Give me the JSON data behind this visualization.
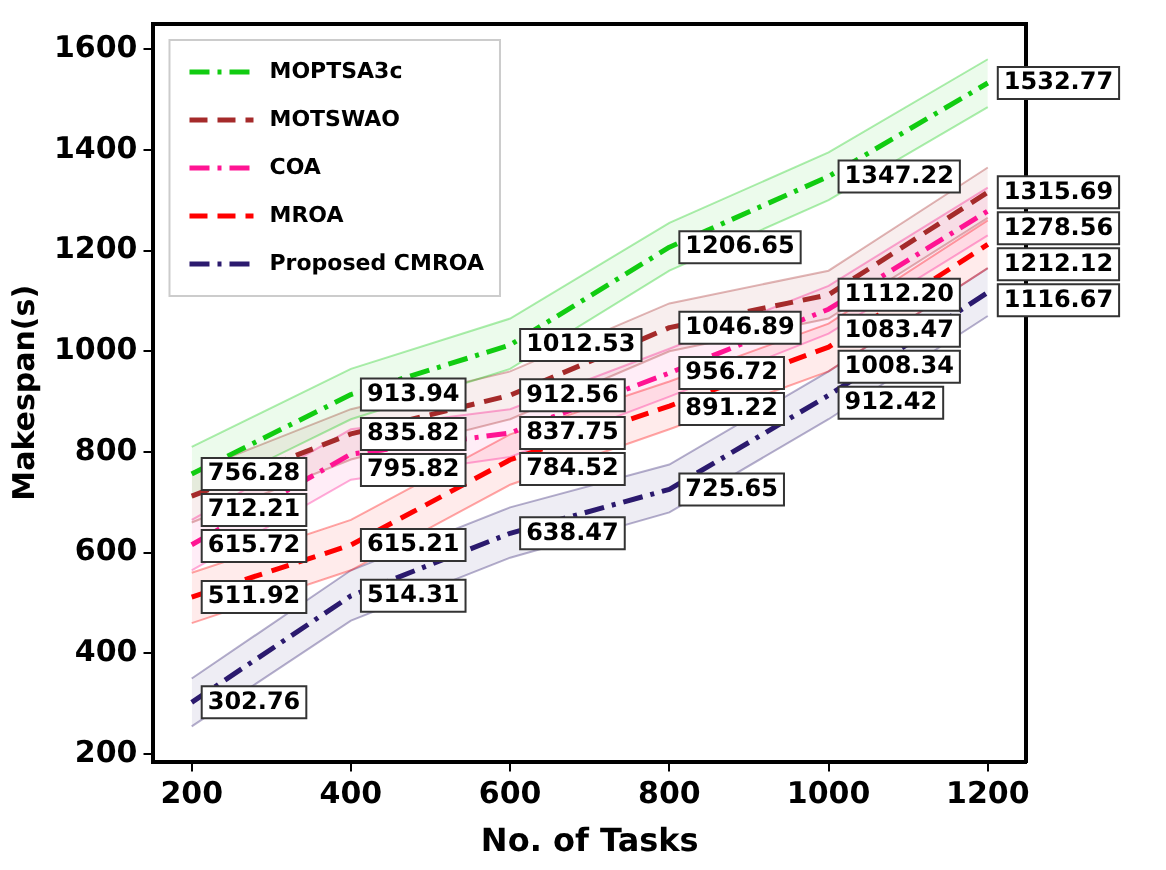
{
  "chart_data": {
    "type": "line",
    "xlabel": "No. of Tasks",
    "ylabel": "Makespan(s)",
    "x": [
      200,
      400,
      600,
      800,
      1000,
      1200
    ],
    "xlim": [
      152,
      1248
    ],
    "xticks": [
      200,
      400,
      600,
      800,
      1000,
      1200
    ],
    "ylim": [
      185,
      1650
    ],
    "yticks": [
      200,
      400,
      600,
      800,
      1000,
      1200,
      1400,
      1600
    ],
    "grid": false,
    "legend": "top left",
    "marker": "none",
    "data_labels": true,
    "series": [
      {
        "name": "MOPTSA3c",
        "color": "#11cc11",
        "line_style": "dashdot",
        "values": [
          756.28,
          913.94,
          1012.53,
          1206.65,
          1347.22,
          1532.77
        ],
        "lower": [
          710,
          865,
          965,
          1160,
          1300,
          1485
        ],
        "upper": [
          810,
          965,
          1065,
          1255,
          1395,
          1580
        ]
      },
      {
        "name": "MOTSWAO",
        "color": "#a52a2a",
        "line_style": "dashed",
        "values": [
          712.21,
          835.82,
          912.56,
          1046.89,
          1112.2,
          1315.69
        ],
        "value_labels": [
          "712.21",
          "835.82",
          "912.56",
          "1046.89",
          "1112.20",
          "1315.69"
        ],
        "lower": [
          660,
          785,
          865,
          1000,
          1065,
          1265
        ],
        "upper": [
          760,
          885,
          960,
          1095,
          1160,
          1365
        ]
      },
      {
        "name": "COA",
        "color": "#ff1493",
        "line_style": "dashdot",
        "values": [
          615.72,
          795.82,
          837.75,
          956.72,
          1083.47,
          1278.56
        ],
        "lower": [
          565,
          745,
          790,
          910,
          1035,
          1230
        ],
        "upper": [
          665,
          845,
          885,
          1005,
          1130,
          1325
        ]
      },
      {
        "name": "MROA",
        "color": "#ff0000",
        "line_style": "dashed",
        "values": [
          511.92,
          615.21,
          784.52,
          891.22,
          1008.34,
          1212.12
        ],
        "lower": [
          460,
          565,
          735,
          845,
          960,
          1165
        ],
        "upper": [
          560,
          665,
          835,
          940,
          1055,
          1260
        ]
      },
      {
        "name": "Proposed CMROA",
        "color": "#2b1a6e",
        "line_style": "dashdot",
        "values": [
          302.76,
          514.31,
          638.47,
          725.65,
          912.42,
          1116.67
        ],
        "lower": [
          255,
          465,
          590,
          680,
          865,
          1070
        ],
        "upper": [
          350,
          565,
          690,
          775,
          960,
          1165
        ]
      }
    ]
  }
}
